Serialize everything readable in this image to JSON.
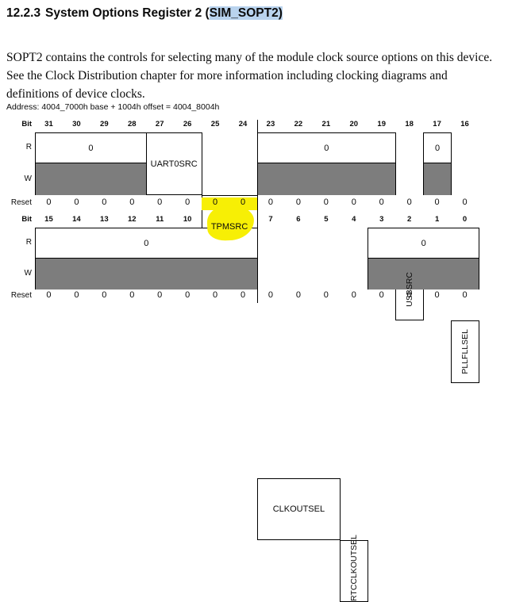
{
  "page": {
    "heading": {
      "number": "12.2.3",
      "title": "System Options Register 2 (",
      "linked_text": "SIM_SOPT2)"
    },
    "body_paragraph": "SOPT2 contains the controls for selecting many of the module clock source options on this device. See the Clock Distribution chapter for more information including clocking diagrams and definitions of device clocks.",
    "address_line": "Address: 4004_7000h base + 1004h offset = 4004_8004h"
  },
  "colors": {
    "selection_blue": "#b9d3ee",
    "marker_yellow": "#f7ef05",
    "write_row_gray": "#7d7d7d",
    "border_black": "#000000"
  },
  "register_diagram": {
    "row_labels": {
      "bit": "Bit",
      "read": "R",
      "write": "W",
      "reset": "Reset"
    },
    "tables": [
      {
        "bit_labels": [
          "31",
          "30",
          "29",
          "28",
          "27",
          "26",
          "25",
          "24",
          "23",
          "22",
          "21",
          "20",
          "19",
          "18",
          "17",
          "16"
        ],
        "groups": [
          {
            "span": 4,
            "type": "reserved",
            "r_label": "0"
          },
          {
            "span": 2,
            "type": "field",
            "label": "UART0SRC",
            "vertical": false,
            "marker_highlight": false
          },
          {
            "span": 2,
            "type": "field",
            "label": "TPMSRC",
            "vertical": false,
            "marker_highlight": true
          },
          {
            "span": 5,
            "type": "reserved",
            "r_label": "0"
          },
          {
            "span": 1,
            "type": "field",
            "label": "USBSRC",
            "vertical": true,
            "marker_highlight": false
          },
          {
            "span": 1,
            "type": "reserved",
            "r_label": "0"
          },
          {
            "span": 1,
            "type": "field",
            "label": "PLLFLLSEL",
            "vertical": true,
            "marker_highlight": false
          }
        ],
        "reset_values": [
          "0",
          "0",
          "0",
          "0",
          "0",
          "0",
          "0",
          "0",
          "0",
          "0",
          "0",
          "0",
          "0",
          "0",
          "0",
          "0"
        ],
        "reset_highlighted_bits": [
          "25",
          "24"
        ]
      },
      {
        "bit_labels": [
          "15",
          "14",
          "13",
          "12",
          "11",
          "10",
          "9",
          "8",
          "7",
          "6",
          "5",
          "4",
          "3",
          "2",
          "1",
          "0"
        ],
        "groups": [
          {
            "span": 8,
            "type": "reserved",
            "r_label": "0"
          },
          {
            "span": 3,
            "type": "field",
            "label": "CLKOUTSEL",
            "vertical": false,
            "marker_highlight": false
          },
          {
            "span": 1,
            "type": "field",
            "label": "RTCCLKOUTSEL",
            "vertical": true,
            "marker_highlight": false
          },
          {
            "span": 4,
            "type": "reserved",
            "r_label": "0"
          }
        ],
        "reset_values": [
          "0",
          "0",
          "0",
          "0",
          "0",
          "0",
          "0",
          "0",
          "0",
          "0",
          "0",
          "0",
          "0",
          "0",
          "0",
          "0"
        ],
        "reset_highlighted_bits": []
      }
    ]
  }
}
